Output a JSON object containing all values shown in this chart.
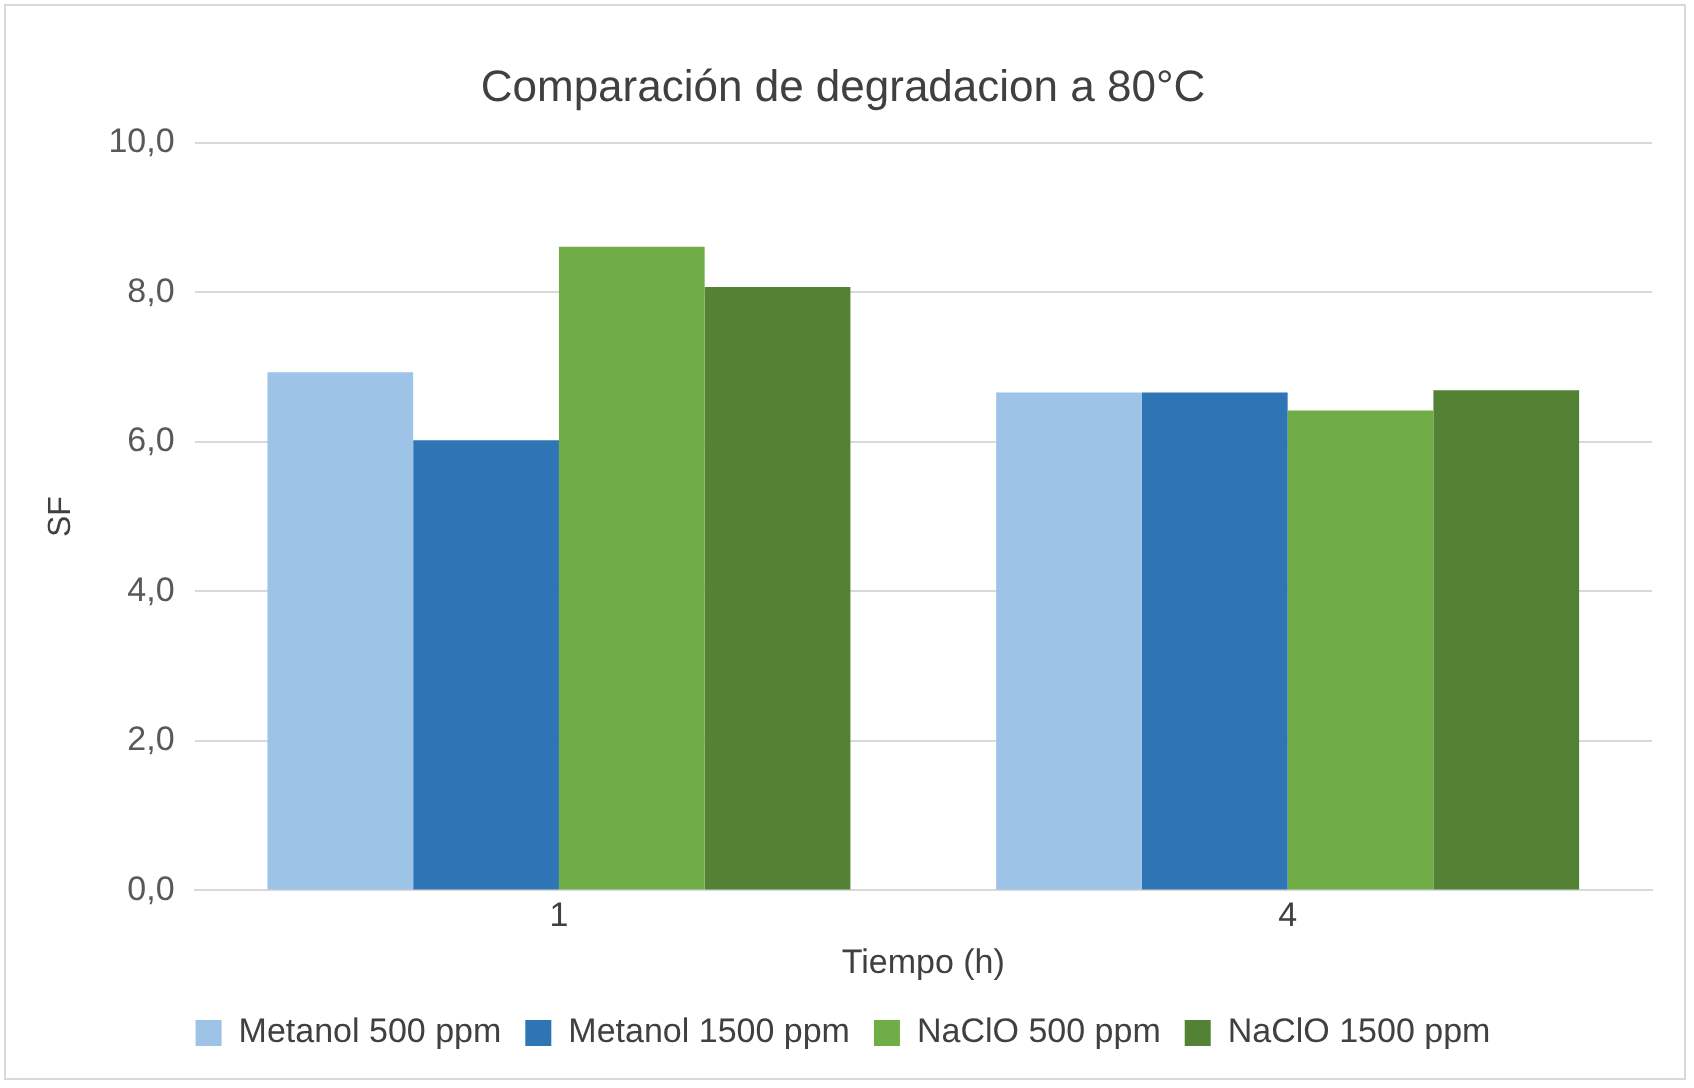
{
  "chart_data": {
    "type": "bar",
    "title": "Comparación de degradacion a 80°C",
    "xlabel": "Tiempo (h)",
    "ylabel": "SF",
    "categories": [
      "1",
      "4"
    ],
    "series": [
      {
        "name": "Metanol 500 ppm",
        "color": "#9dc3e6",
        "values": [
          6.93,
          6.66
        ]
      },
      {
        "name": "Metanol 1500 ppm",
        "color": "#2e75b6",
        "values": [
          6.02,
          6.66
        ]
      },
      {
        "name": "NaClO 500 ppm",
        "color": "#70ad47",
        "values": [
          8.61,
          6.42
        ]
      },
      {
        "name": "NaClO 1500 ppm",
        "color": "#548235",
        "values": [
          8.07,
          6.69
        ]
      }
    ],
    "ylim": [
      0,
      10
    ],
    "yticks": [
      {
        "value": 0,
        "label": "0,0"
      },
      {
        "value": 2,
        "label": "2,0"
      },
      {
        "value": 4,
        "label": "4,0"
      },
      {
        "value": 6,
        "label": "6,0"
      },
      {
        "value": 8,
        "label": "8,0"
      },
      {
        "value": 10,
        "label": "10,0"
      }
    ],
    "grid": "y",
    "legend": "bottom"
  }
}
